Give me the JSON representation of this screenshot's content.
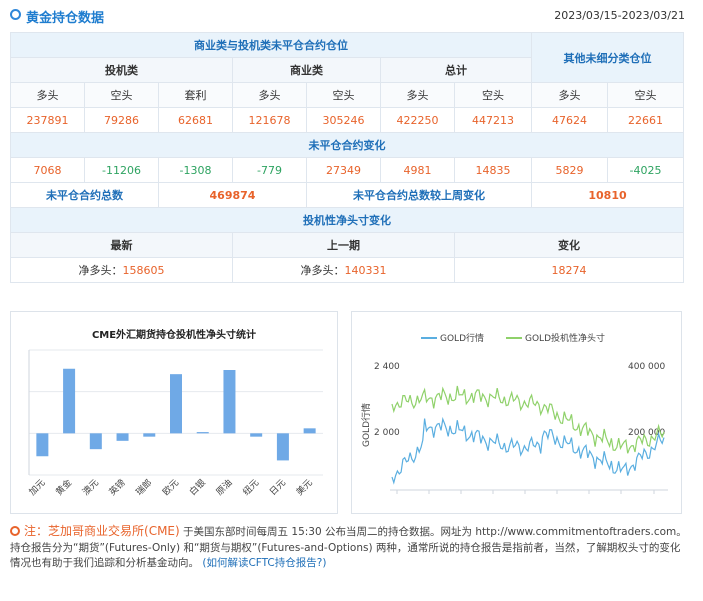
{
  "header": {
    "title": "黄金持仓数据",
    "date_range": "2023/03/15-2023/03/21"
  },
  "table": {
    "group1": "商业类与投机类未平仓合约仓位",
    "group2": "其他未细分类仓位",
    "speculative": "投机类",
    "commercial": "商业类",
    "total": "总计",
    "long": "多头",
    "short": "空头",
    "spread": "套利",
    "values": [
      "237891",
      "79286",
      "62681",
      "121678",
      "305246",
      "422250",
      "447213",
      "47624",
      "22661"
    ],
    "change_title": "未平仓合约变化",
    "changes": [
      "7068",
      "-11206",
      "-1308",
      "-779",
      "27349",
      "4981",
      "14835",
      "5829",
      "-4025"
    ],
    "oi_total_label": "未平仓合约总数",
    "oi_total": "469874",
    "oi_change_label": "未平仓合约总数较上周变化",
    "oi_change": "10810",
    "net_title": "投机性净头寸变化",
    "latest": "最新",
    "previous": "上一期",
    "change": "变化",
    "net_long_prefix": "净多头：",
    "latest_value": "158605",
    "previous_value": "140331",
    "change_value": "18274"
  },
  "chart_data": [
    {
      "type": "bar",
      "title": "CME外汇期货持仓投机性净头寸统计",
      "categories": [
        "加元",
        "黄金",
        "澳元",
        "英镑",
        "瑞郎",
        "欧元",
        "白银",
        "原油",
        "纽元",
        "日元",
        "美元"
      ],
      "values": [
        -0.55,
        1.55,
        -0.38,
        -0.18,
        -0.08,
        1.42,
        0.03,
        1.52,
        -0.08,
        -0.65,
        0.12
      ],
      "ylim": [
        -1,
        2
      ]
    },
    {
      "type": "line",
      "series": [
        {
          "name": "GOLD行情",
          "color": "#5aaee0"
        },
        {
          "name": "GOLD投机性净头寸",
          "color": "#8fd16a"
        }
      ],
      "ylabel": "GOLD行情",
      "y_left_ticks": [
        "2 400",
        "2 000"
      ],
      "y_right_ticks": [
        "400 000",
        "200 000"
      ]
    }
  ],
  "note": {
    "label": "注：",
    "exchange": "芝加哥商业交易所(CME)",
    "text": "于美国东部时间每周五 15:30 公布当周二的持仓数据。网址为 http://www.commitmentoftraders.com。持仓报告分为“期货”(Futures-Only) 和“期货与期权”(Futures-and-Options) 两种，通常所说的持仓报告是指前者，当然，了解期权头寸的变化情况也有助于我们追踪和分析基金动向。",
    "link": "(如何解读CFTC持仓报告?)"
  }
}
